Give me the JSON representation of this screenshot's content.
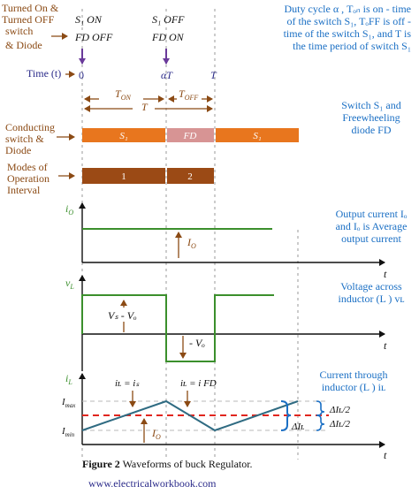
{
  "labels": {
    "switch_states_label": [
      "Turned On &",
      "Turned OFF",
      "switch",
      "& Diode"
    ],
    "state_on": [
      "S₁ ON",
      "FD OFF"
    ],
    "state_off": [
      "S₁ OFF",
      "FD ON"
    ],
    "time_label": "Time (t)",
    "t_zero": "0",
    "t_alphaT": "αT",
    "t_T": "T",
    "t_on": "T",
    "t_on_sub": "ON",
    "t_off": "T",
    "t_off_sub": "OFF",
    "t_period": "T",
    "conducting_label": [
      "Conducting",
      "switch &",
      "Diode"
    ],
    "modes_label": [
      "Modes of",
      "Operation",
      "Interval"
    ],
    "bar_s1": "S₁",
    "bar_fd": "FD",
    "mode1": "1",
    "mode2": "2",
    "duty_note": [
      "Duty cycle α , Tₒₙ is on - time",
      "of the switch S₁, TₒFF is off -",
      "time of the switch S₁, and T is",
      "the time period of switch S₁"
    ],
    "switch_note": [
      "Switch S₁ and",
      "Freewheeling",
      "diode FD"
    ],
    "io_axis": "i",
    "io_axis_sub": "O",
    "io_note": [
      "Output current Iₒ",
      "and Iₒ is Average",
      "output current"
    ],
    "io_arrow": "I",
    "io_arrow_sub": "O",
    "vl_axis": "v",
    "vl_axis_sub": "L",
    "vl_note": [
      "Voltage across",
      "inductor (L ) vʟ"
    ],
    "vs_minus_vo": "Vₛ - Vₒ",
    "minus_vo": "- Vₒ",
    "il_axis": "i",
    "il_axis_sub": "L",
    "imax": "I",
    "imax_sub": "max",
    "imin": "I",
    "imin_sub": "min",
    "il_eq_is": "iʟ = iₛ",
    "il_eq_ifd": "iʟ = i FD",
    "io_bottom": "I",
    "io_bottom_sub": "O",
    "il_note": [
      "Current through",
      "inductor (L ) iʟ"
    ],
    "delta_half_top": "ΔIʟ/2",
    "delta_full": "ΔIʟ",
    "delta_half_bottom": "ΔIʟ/2",
    "t_axis": "t",
    "caption_bold": "Figure 2",
    "caption_rest": " Waveforms of buck Regulator.",
    "website": "www.electricalworkbook.com"
  },
  "colors": {
    "brown": "#8B4A14",
    "orange": "#E8761E",
    "pink": "#D79494",
    "darkbrown": "#9B4A15",
    "green": "#3b8f2c",
    "blue": "#1a6fc4",
    "red": "#e0261e",
    "purple": "#6a3a9a",
    "teal": "#2f6b82"
  }
}
